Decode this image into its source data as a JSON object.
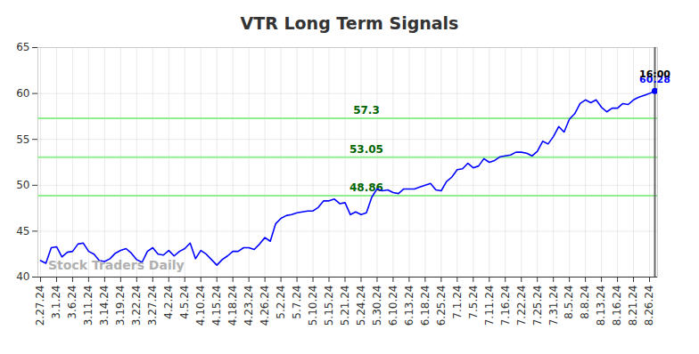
{
  "chart_data": {
    "type": "line",
    "title": "VTR Long Term Signals",
    "watermark": "Stock Traders Daily",
    "color": "#0000ff",
    "grid": true,
    "ylim": [
      40,
      65
    ],
    "yticks": [
      40,
      45,
      50,
      55,
      60,
      65
    ],
    "categories": [
      "2.27.24",
      null,
      null,
      "3.1.24",
      null,
      null,
      "3.6.24",
      null,
      null,
      "3.11.24",
      null,
      null,
      "3.14.24",
      null,
      null,
      "3.19.24",
      null,
      null,
      "3.22.24",
      null,
      null,
      "3.27.24",
      null,
      null,
      "4.2.24",
      null,
      null,
      "4.5.24",
      null,
      null,
      "4.10.24",
      null,
      null,
      "4.15.24",
      null,
      null,
      "4.18.24",
      null,
      null,
      "4.23.24",
      null,
      null,
      "4.26.24",
      null,
      null,
      "5.2.24",
      null,
      null,
      "5.7.24",
      null,
      null,
      "5.10.24",
      null,
      null,
      "5.15.24",
      null,
      null,
      "5.21.24",
      null,
      null,
      "5.24.24",
      null,
      null,
      "5.30.24",
      null,
      null,
      "6.10.24",
      null,
      null,
      "6.13.24",
      null,
      null,
      "6.18.24",
      null,
      null,
      "6.25.24",
      null,
      null,
      "7.1.24",
      null,
      null,
      "7.5.24",
      null,
      null,
      "7.11.24",
      null,
      null,
      "7.16.24",
      null,
      null,
      "7.22.24",
      null,
      null,
      "7.25.24",
      null,
      null,
      "7.31.24",
      null,
      null,
      "8.5.24",
      null,
      null,
      "8.8.24",
      null,
      null,
      "8.13.24",
      null,
      null,
      "8.16.24",
      null,
      null,
      "8.21.24",
      null,
      null,
      "8.26.24",
      null
    ],
    "values": [
      41.8,
      41.5,
      43.2,
      43.3,
      42.2,
      42.7,
      42.8,
      43.6,
      43.7,
      42.8,
      42.5,
      41.8,
      41.7,
      42.0,
      42.6,
      42.9,
      43.1,
      42.6,
      41.9,
      41.6,
      42.8,
      43.2,
      42.5,
      42.4,
      42.9,
      42.3,
      42.8,
      43.1,
      43.7,
      42.0,
      42.9,
      42.5,
      41.9,
      41.3,
      41.9,
      42.3,
      42.8,
      42.8,
      43.2,
      43.2,
      43.0,
      43.6,
      44.3,
      43.9,
      45.8,
      46.4,
      46.7,
      46.8,
      47.0,
      47.1,
      47.2,
      47.2,
      47.6,
      48.3,
      48.3,
      48.5,
      48.0,
      48.1,
      46.8,
      47.1,
      46.8,
      47.0,
      48.7,
      49.6,
      49.4,
      49.5,
      49.2,
      49.1,
      49.6,
      49.6,
      49.6,
      49.8,
      50.0,
      50.2,
      49.5,
      49.4,
      50.4,
      50.9,
      51.7,
      51.8,
      52.4,
      51.9,
      52.1,
      52.9,
      52.5,
      52.7,
      53.1,
      53.2,
      53.3,
      53.6,
      53.6,
      53.5,
      53.2,
      53.7,
      54.8,
      54.5,
      55.3,
      56.4,
      55.8,
      57.2,
      57.8,
      58.9,
      59.3,
      59.0,
      59.3,
      58.5,
      58.0,
      58.4,
      58.4,
      58.9,
      58.8,
      59.3,
      59.6,
      59.8,
      60.0,
      60.28
    ],
    "signal_lines": [
      {
        "value": 57.3,
        "color": "#90ee90",
        "label_color": "#006400"
      },
      {
        "value": 53.05,
        "color": "#90ee90",
        "label_color": "#006400"
      },
      {
        "value": 48.86,
        "color": "#90ee90",
        "label_color": "#006400"
      }
    ],
    "end_label": {
      "time": "16:00",
      "value": 60.28
    }
  }
}
